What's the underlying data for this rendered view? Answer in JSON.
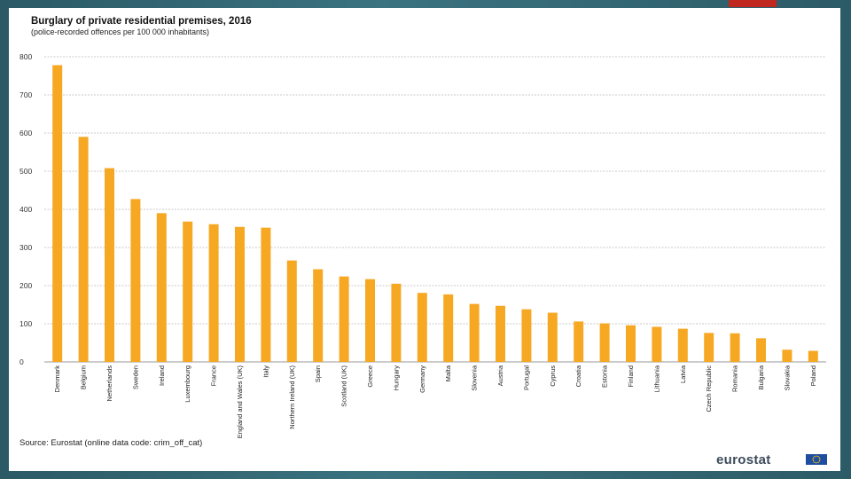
{
  "chart_data": {
    "type": "bar",
    "title": "Burglary of private residential premises, 2016",
    "subtitle": "(police-recorded  offences  per  100 000  inhabitants)",
    "categories": [
      "Denmark",
      "Belgium",
      "Netherlands",
      "Sweden",
      "Ireland",
      "Luxembourg",
      "France",
      "England and Wales (UK)",
      "Italy",
      "Northern Ireland (UK)",
      "Spain",
      "Scotland (UK)",
      "Greece",
      "Hungary",
      "Germany",
      "Malta",
      "Slovenia",
      "Austria",
      "Portugal",
      "Cyprus",
      "Croatia",
      "Estonia",
      "Finland",
      "Lithuania",
      "Latvia",
      "Czech Republic",
      "Romania",
      "Bulgaria",
      "Slovakia",
      "Poland"
    ],
    "values": [
      778,
      590,
      508,
      427,
      390,
      368,
      361,
      354,
      352,
      266,
      243,
      224,
      217,
      205,
      181,
      177,
      152,
      147,
      138,
      129,
      106,
      101,
      96,
      92,
      87,
      76,
      75,
      62,
      32,
      29
    ],
    "ylim": [
      0,
      800
    ],
    "yticks": [
      0,
      100,
      200,
      300,
      400,
      500,
      600,
      700,
      800
    ],
    "grid": true,
    "bar_color": "#f7a823"
  },
  "footer": {
    "source": "Source: Eurostat (online data code: crim_off_cat)",
    "brand": "eurostat"
  },
  "colors": {
    "frame": "#3a6f7b",
    "accent": "#c0281f",
    "eu_blue": "#1f4ea1"
  }
}
